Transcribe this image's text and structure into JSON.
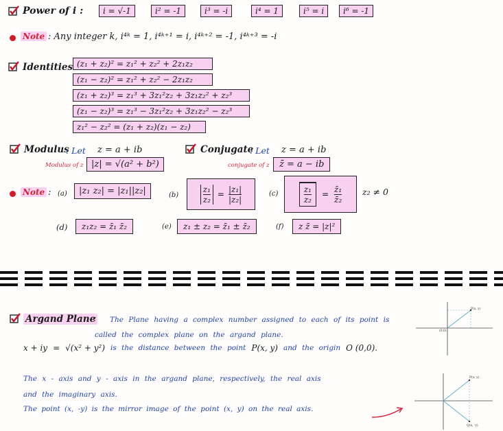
{
  "power": {
    "label": "Power of i :",
    "boxes": [
      "i = √-1",
      "i² = -1",
      "i³ = -i",
      "i⁴ = 1",
      "i⁵ = i",
      "i⁶ = -1"
    ]
  },
  "note1": {
    "label": "Note",
    "text": ": Any integer k, i⁴ᵏ = 1, i⁴ᵏ⁺¹ = i, i⁴ᵏ⁺² = -1, i⁴ᵏ⁺³ = -i"
  },
  "identities": {
    "label": "Identities",
    "rows": [
      "(z₁ + z₂)² = z₁² + z₂² + 2z₁z₂",
      "(z₁ − z₂)² = z₁² + z₂² − 2z₁z₂",
      "(z₁ + z₂)³ = z₁³ + 3z₁²z₂ + 3z₁z₂² + z₂³",
      "(z₁ − z₂)³ = z₁³ − 3z₁²z₂ + 3z₁z₂² − z₂³",
      "z₁² − z₂²  = (z₁ + z₂)(z₁ − z₂)"
    ]
  },
  "modulus": {
    "label": "Modulus",
    "let": ": Let",
    "let_eq": "z = a + ib",
    "sub": "Modulus of z",
    "formula": "|z| = √(a² + b²)"
  },
  "conjugate": {
    "label": "Conjugate",
    "let": ": Let",
    "let_eq": "z = a + ib",
    "sub": "conjugate of z",
    "formula": "z̄ = a − ib"
  },
  "note2": {
    "label": "Note",
    "colon": ":",
    "a_tag": "(a)",
    "a_formula": "|z₁ z₂| = |z₁||z₂|",
    "b_tag": "(b)",
    "b_lhs_num": "z₁",
    "b_lhs_den": "z₂",
    "b_eq": "=",
    "b_rhs_num": "|z₁|",
    "b_rhs_den": "|z₂|",
    "c_tag": "(c)",
    "c_lhs_num": "z₁",
    "c_lhs_den": "z₂",
    "c_eq": "=",
    "c_rhs_num": "z̄₁",
    "c_rhs_den": "z̄₂",
    "c_cond": "z₂ ≠ 0",
    "d_tag": "(d)",
    "d_formula": "z₁z₂ = z̄₁ z̄₂",
    "e_tag": "(e)",
    "e_formula": "z₁ ± z₂ = z̄₁ ± z̄₂",
    "f_tag": "(f)",
    "f_formula": "z z̄ = |z|²"
  },
  "argand": {
    "label": "Argand Plane",
    "colon": ":",
    "line1": "The Plane having a complex number assigned to each of its point is",
    "line2": "called the complex plane on the argand plane.",
    "formula_lhs": "x + iy",
    "formula_eq": "=",
    "formula_root": "√(x² + y²)",
    "formula_text": "is the distance between the point",
    "point": "P(x, y)",
    "formula_text2": "and the origin",
    "origin": "O (0,0).",
    "para2_line1": "The x - axis and y - axis in the argand plane, respectively, the real axis",
    "para2_line2": "and the imaginary axis.",
    "para2_line3": "The point (x, -y) is the mirror image of the point (x, y) on the real axis."
  },
  "graph1": {
    "p_label": "P(x, y)",
    "o_label": "(0,0)"
  },
  "graph2": {
    "p_label": "P(x, y)",
    "q_label": "Q(x, -y)"
  },
  "colors": {
    "highlight": "#f7d1ef",
    "accent_red": "#d3233a",
    "accent_blue": "#2143a8"
  }
}
